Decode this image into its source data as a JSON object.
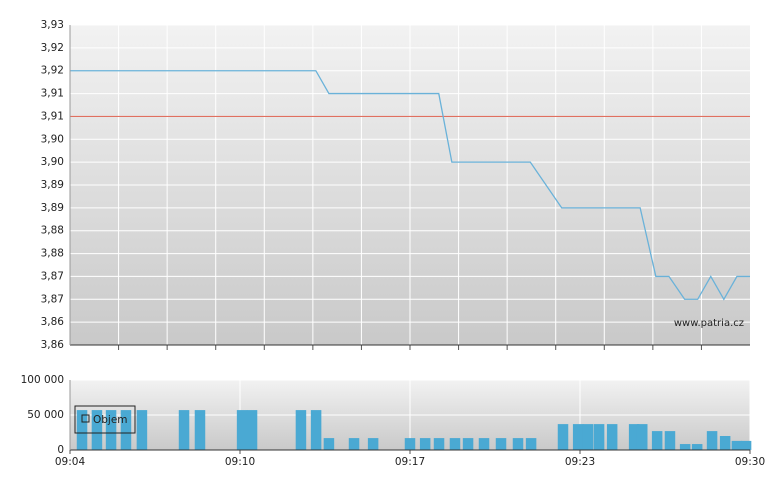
{
  "chart_data": [
    {
      "type": "line",
      "xlim": [
        4,
        30
      ],
      "ylim": [
        3.86,
        3.93
      ],
      "yticks": [
        {
          "value": 3.93,
          "label": "3,93"
        },
        {
          "value": 3.925,
          "label": "3,92"
        },
        {
          "value": 3.92,
          "label": "3,92"
        },
        {
          "value": 3.915,
          "label": "3,91"
        },
        {
          "value": 3.91,
          "label": "3,91"
        },
        {
          "value": 3.905,
          "label": "3,90"
        },
        {
          "value": 3.9,
          "label": "3,90"
        },
        {
          "value": 3.895,
          "label": "3,89"
        },
        {
          "value": 3.89,
          "label": "3,89"
        },
        {
          "value": 3.885,
          "label": "3,88"
        },
        {
          "value": 3.88,
          "label": "3,88"
        },
        {
          "value": 3.875,
          "label": "3,87"
        },
        {
          "value": 3.87,
          "label": "3,87"
        },
        {
          "value": 3.865,
          "label": "3,86"
        },
        {
          "value": 3.86,
          "label": "3,86"
        }
      ],
      "x": [
        4,
        13.4,
        13.9,
        18.1,
        18.6,
        21.6,
        22.8,
        25.8,
        26.4,
        26.9,
        27.5,
        28,
        28.5,
        29,
        29.5,
        30
      ],
      "values": [
        3.92,
        3.92,
        3.915,
        3.915,
        3.9,
        3.9,
        3.89,
        3.89,
        3.875,
        3.875,
        3.87,
        3.87,
        3.875,
        3.87,
        3.875,
        3.875
      ],
      "color": "#6ab2d9",
      "reference_line": {
        "value": 3.91,
        "color": "#e07060"
      },
      "grid": true,
      "watermark": "www.patria.cz"
    },
    {
      "type": "bar",
      "xlim": [
        4,
        30
      ],
      "xticks": [
        {
          "value": 4,
          "label": "09:04"
        },
        {
          "value": 10.5,
          "label": "09:10"
        },
        {
          "value": 17,
          "label": "09:17"
        },
        {
          "value": 23.5,
          "label": "09:23"
        },
        {
          "value": 30,
          "label": "09:30"
        }
      ],
      "ylim": [
        0,
        100000
      ],
      "yticks": [
        0,
        {
          "value": 50000,
          "label": "50 000"
        },
        {
          "value": 100000,
          "label": "100 000"
        }
      ],
      "series": [
        {
          "name": "Objem",
          "color": "#4aa9d3",
          "x": [
            4.46,
            5.03,
            5.57,
            6.14,
            6.75,
            8.36,
            8.97,
            10.58,
            10.96,
            12.83,
            13.41,
            13.9,
            14.86,
            15.59,
            17.0,
            17.58,
            18.11,
            18.72,
            19.22,
            19.83,
            20.48,
            21.13,
            21.63,
            22.85,
            23.43,
            23.81,
            24.23,
            24.73,
            25.57,
            25.88,
            26.45,
            26.94,
            27.52,
            27.98,
            28.55,
            29.05,
            29.5,
            29.85
          ],
          "values": [
            57000,
            57000,
            57000,
            57000,
            57000,
            57000,
            57000,
            57000,
            57000,
            57000,
            57000,
            17000,
            17000,
            17000,
            17000,
            17000,
            17000,
            17000,
            17000,
            17000,
            17000,
            17000,
            17000,
            37000,
            37000,
            37000,
            37000,
            37000,
            37000,
            37000,
            27000,
            27000,
            8500,
            8500,
            27000,
            20000,
            13000,
            13000
          ]
        }
      ],
      "grid": true
    }
  ]
}
